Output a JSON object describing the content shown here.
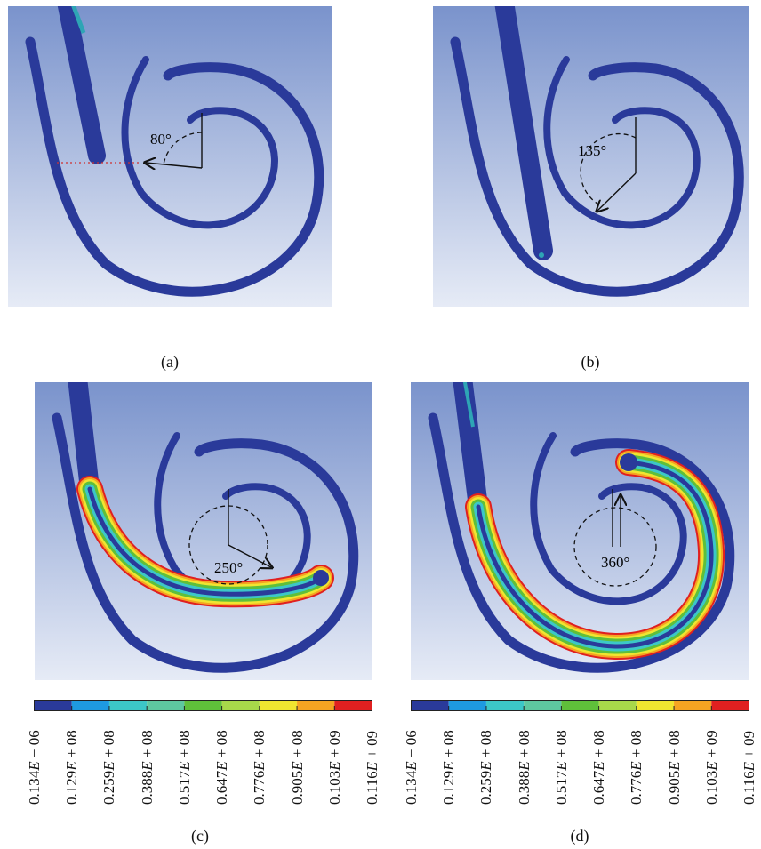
{
  "panels": [
    {
      "id": "a",
      "label": "(a)",
      "angle": "80°"
    },
    {
      "id": "b",
      "label": "(b)",
      "angle": "135°"
    },
    {
      "id": "c",
      "label": "(c)",
      "angle": "250°"
    },
    {
      "id": "d",
      "label": "(d)",
      "angle": "360°"
    }
  ],
  "colorbar": {
    "colors": [
      "#2a3a9a",
      "#1e9ae0",
      "#3cc7c7",
      "#5ec8a0",
      "#5fbf3a",
      "#a8d84a",
      "#f0e530",
      "#f5a422",
      "#e02020"
    ],
    "ticks": [
      {
        "mant": "0.134",
        "exp": "− 06"
      },
      {
        "mant": "0.129",
        "exp": "+ 08"
      },
      {
        "mant": "0.259",
        "exp": "+ 08"
      },
      {
        "mant": "0.388",
        "exp": "+ 08"
      },
      {
        "mant": "0.517",
        "exp": "+ 08"
      },
      {
        "mant": "0.647",
        "exp": "+ 08"
      },
      {
        "mant": "0.776",
        "exp": "+ 08"
      },
      {
        "mant": "0.905",
        "exp": "+ 08"
      },
      {
        "mant": "0.103",
        "exp": "+ 09"
      },
      {
        "mant": "0.116",
        "exp": "+ 09"
      }
    ]
  }
}
